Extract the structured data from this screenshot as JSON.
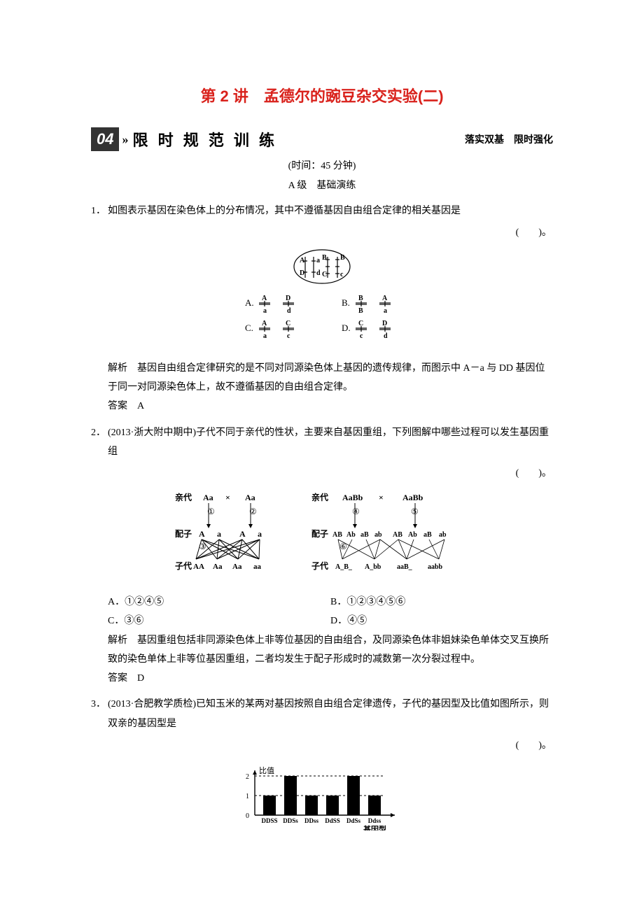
{
  "title": "第 2 讲　孟德尔的豌豆杂交实验(二)",
  "header": {
    "boxNumber": "04",
    "chev": "»",
    "sectionName": "限 时 规 范 训 练",
    "sub": "落实双基　限时强化"
  },
  "timeLine": "(时间：45 分钟)",
  "level": "A 级　基础演练",
  "q1": {
    "num": "1．",
    "text": "如图表示基因在染色体上的分布情况，其中不遵循基因自由组合定律的相关基因是",
    "paren": "(　　)。",
    "explainLabel": "解析　",
    "explain": "基因自由组合定律研究的是不同对同源染色体上基因的遗传规律，而图示中 A－a 与 DD 基因位于同一对同源染色体上，故不遵循基因的自由组合定律。",
    "ansLabel": "答案　",
    "ans": "A",
    "fig": {
      "top": {
        "A": "A",
        "a": "a",
        "B": "B",
        "Bp": "B",
        "D": "D",
        "d": "d",
        "C": "C",
        "c": "c"
      },
      "opts": {
        "A": {
          "l": "A.",
          "t1": "A",
          "b1": "a",
          "t2": "D",
          "b2": "d"
        },
        "B": {
          "l": "B.",
          "t1": "B",
          "b1": "B",
          "t2": "A",
          "b2": "a"
        },
        "C": {
          "l": "C.",
          "t1": "A",
          "b1": "a",
          "t2": "C",
          "b2": "c"
        },
        "D": {
          "l": "D.",
          "t1": "C",
          "b1": "c",
          "t2": "D",
          "b2": "d"
        }
      }
    }
  },
  "q2": {
    "num": "2．",
    "text": "(2013·浙大附中期中)子代不同于亲代的性状，主要来自基因重组，下列图解中哪些过程可以发生基因重组",
    "paren": "(　　)。",
    "optA": "A．①②④⑤",
    "optB": "B．①②③④⑤⑥",
    "optC": "C．③⑥",
    "optD": "D．④⑤",
    "explainLabel": "解析　",
    "explain": "基因重组包括非同源染色体上非等位基因的自由组合，及同源染色体非姐妹染色单体交叉互换所致的染色单体上非等位基因重组，二者均发生于配子形成时的减数第一次分裂过程中。",
    "ansLabel": "答案　",
    "ans": "D",
    "fig": {
      "left": {
        "parentLabel": "亲代",
        "p1": "Aa",
        "x": "×",
        "p2": "Aa",
        "c1": "①",
        "c2": "②",
        "gameteLabel": "配子",
        "g": [
          "A",
          "a",
          "A",
          "a"
        ],
        "c3": "③",
        "offLabel": "子代",
        "off": [
          "AA",
          "Aa",
          "Aa",
          "aa"
        ]
      },
      "right": {
        "parentLabel": "亲代",
        "p1": "AaBb",
        "x": "×",
        "p2": "AaBb",
        "c4": "④",
        "c5": "⑤",
        "gameteLabel": "配子",
        "g": [
          "AB",
          "Ab",
          "aB",
          "ab",
          "AB",
          "Ab",
          "aB",
          "ab"
        ],
        "c6": "⑥",
        "offLabel": "子代",
        "off": [
          "A_B_",
          "A_bb",
          "aaB_",
          "aabb"
        ]
      }
    }
  },
  "q3": {
    "num": "3．",
    "text": "(2013·合肥教学质检)已知玉米的某两对基因按照自由组合定律遗传，子代的基因型及比值如图所示，则双亲的基因型是",
    "paren": "(　　)。",
    "chart": {
      "type": "bar",
      "ylabel": "比值",
      "xlabel": "基因型",
      "categories": [
        "DDSS",
        "DDSs",
        "DDss",
        "DdSS",
        "DdSs",
        "Ddss"
      ],
      "values": [
        1,
        2,
        1,
        1,
        2,
        1
      ],
      "yticks": [
        0,
        1,
        2
      ],
      "bar_color": "#000000",
      "grid_dash": "3,3",
      "axis_color": "#000000",
      "text_fontsize": 10
    }
  }
}
